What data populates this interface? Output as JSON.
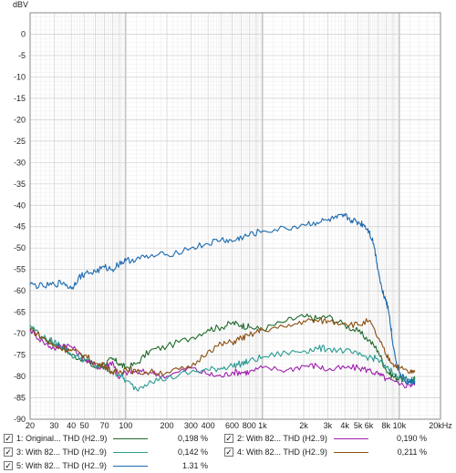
{
  "chart_data": {
    "type": "line",
    "ylabel": "dBV",
    "xlabel": "",
    "x_scale": "log",
    "xlim": [
      20,
      20000
    ],
    "ylim": [
      -90,
      5
    ],
    "y_ticks": [
      0,
      -5,
      -10,
      -15,
      -20,
      -25,
      -30,
      -35,
      -40,
      -45,
      -50,
      -55,
      -60,
      -65,
      -70,
      -75,
      -80,
      -85,
      -90
    ],
    "x_ticks": [
      {
        "value": 20,
        "label": "20"
      },
      {
        "value": 30,
        "label": "30"
      },
      {
        "value": 40,
        "label": "40"
      },
      {
        "value": 50,
        "label": "50"
      },
      {
        "value": 70,
        "label": "70"
      },
      {
        "value": 100,
        "label": "100"
      },
      {
        "value": 200,
        "label": "200"
      },
      {
        "value": 300,
        "label": "300"
      },
      {
        "value": 400,
        "label": "400"
      },
      {
        "value": 600,
        "label": "600"
      },
      {
        "value": 800,
        "label": "800"
      },
      {
        "value": 1000,
        "label": "1k"
      },
      {
        "value": 2000,
        "label": "2k"
      },
      {
        "value": 3000,
        "label": "3k"
      },
      {
        "value": 4000,
        "label": "4k"
      },
      {
        "value": 5000,
        "label": "5k"
      },
      {
        "value": 6000,
        "label": "6k"
      },
      {
        "value": 8000,
        "label": "8k"
      },
      {
        "value": 10000,
        "label": "10k"
      },
      {
        "value": 20000,
        "label": "20kHz"
      }
    ],
    "grid": true,
    "legend_placement": "bottom",
    "series": [
      {
        "name": "1: Original... THD (H2..9)",
        "color": "#1f6a2c",
        "value_label": "0,198 %",
        "checked": true,
        "points": [
          [
            20,
            -69
          ],
          [
            25,
            -71
          ],
          [
            30,
            -72.5
          ],
          [
            35,
            -73
          ],
          [
            40,
            -75
          ],
          [
            50,
            -76
          ],
          [
            60,
            -78
          ],
          [
            70,
            -77
          ],
          [
            80,
            -76
          ],
          [
            90,
            -77
          ],
          [
            100,
            -78
          ],
          [
            120,
            -77
          ],
          [
            150,
            -74
          ],
          [
            200,
            -73
          ],
          [
            300,
            -71
          ],
          [
            400,
            -69
          ],
          [
            500,
            -68.5
          ],
          [
            600,
            -67.5
          ],
          [
            700,
            -68
          ],
          [
            800,
            -68.5
          ],
          [
            1000,
            -69
          ],
          [
            1500,
            -67
          ],
          [
            2000,
            -66
          ],
          [
            2500,
            -66.5
          ],
          [
            3000,
            -66
          ],
          [
            4000,
            -68
          ],
          [
            5000,
            -69.5
          ],
          [
            6000,
            -71.5
          ],
          [
            7000,
            -74
          ],
          [
            8000,
            -78.5
          ],
          [
            9000,
            -80
          ],
          [
            10000,
            -80.5
          ],
          [
            12000,
            -81
          ],
          [
            13000,
            -80.5
          ]
        ]
      },
      {
        "name": "2: With 82... THD (H2..9)",
        "color": "#a020b0",
        "value_label": "0,190 %",
        "checked": true,
        "points": [
          [
            20,
            -69
          ],
          [
            25,
            -72
          ],
          [
            30,
            -73.5
          ],
          [
            35,
            -72.5
          ],
          [
            40,
            -73
          ],
          [
            50,
            -76
          ],
          [
            60,
            -77.5
          ],
          [
            70,
            -78
          ],
          [
            80,
            -76.5
          ],
          [
            90,
            -80.5
          ],
          [
            100,
            -79
          ],
          [
            120,
            -79
          ],
          [
            150,
            -79
          ],
          [
            200,
            -80
          ],
          [
            300,
            -78
          ],
          [
            400,
            -79.5
          ],
          [
            500,
            -80
          ],
          [
            600,
            -79
          ],
          [
            700,
            -79
          ],
          [
            800,
            -79
          ],
          [
            1000,
            -78
          ],
          [
            1500,
            -78.5
          ],
          [
            2000,
            -77.5
          ],
          [
            2500,
            -77.5
          ],
          [
            3000,
            -78.5
          ],
          [
            4000,
            -78
          ],
          [
            5000,
            -78
          ],
          [
            6000,
            -78.5
          ],
          [
            7000,
            -79.5
          ],
          [
            8000,
            -80.5
          ],
          [
            10000,
            -82
          ],
          [
            12000,
            -82
          ],
          [
            13000,
            -81.5
          ]
        ]
      },
      {
        "name": "3: With 82... THD (H2..9)",
        "color": "#2a9a94",
        "value_label": "0,142 %",
        "checked": true,
        "points": [
          [
            20,
            -68
          ],
          [
            25,
            -71
          ],
          [
            30,
            -72
          ],
          [
            35,
            -73
          ],
          [
            40,
            -75
          ],
          [
            50,
            -76
          ],
          [
            60,
            -77.5
          ],
          [
            70,
            -78
          ],
          [
            80,
            -79
          ],
          [
            90,
            -79.5
          ],
          [
            100,
            -81
          ],
          [
            120,
            -83
          ],
          [
            150,
            -81
          ],
          [
            200,
            -80.5
          ],
          [
            300,
            -79
          ],
          [
            400,
            -78.5
          ],
          [
            500,
            -78
          ],
          [
            600,
            -77.5
          ],
          [
            700,
            -77
          ],
          [
            800,
            -76.5
          ],
          [
            1000,
            -75.5
          ],
          [
            1500,
            -74.5
          ],
          [
            2000,
            -74
          ],
          [
            2500,
            -73.5
          ],
          [
            3000,
            -73.5
          ],
          [
            4000,
            -74
          ],
          [
            5000,
            -75
          ],
          [
            6000,
            -75.5
          ],
          [
            7000,
            -76
          ],
          [
            8000,
            -78
          ],
          [
            10000,
            -80
          ],
          [
            12000,
            -81
          ],
          [
            13000,
            -80.5
          ]
        ]
      },
      {
        "name": "4: With 82... THD (H2..9)",
        "color": "#8a4e12",
        "value_label": "0,211 %",
        "checked": true,
        "points": [
          [
            20,
            -69
          ],
          [
            25,
            -71
          ],
          [
            30,
            -73
          ],
          [
            35,
            -73.5
          ],
          [
            40,
            -74
          ],
          [
            50,
            -75
          ],
          [
            60,
            -77
          ],
          [
            70,
            -77.5
          ],
          [
            80,
            -79
          ],
          [
            90,
            -79
          ],
          [
            100,
            -78
          ],
          [
            120,
            -79
          ],
          [
            150,
            -79
          ],
          [
            200,
            -79
          ],
          [
            300,
            -78
          ],
          [
            400,
            -74
          ],
          [
            500,
            -72.5
          ],
          [
            600,
            -72
          ],
          [
            700,
            -71
          ],
          [
            800,
            -70.5
          ],
          [
            1000,
            -69
          ],
          [
            1500,
            -68.5
          ],
          [
            2000,
            -67
          ],
          [
            2500,
            -67
          ],
          [
            3000,
            -67
          ],
          [
            4000,
            -67.5
          ],
          [
            5000,
            -68
          ],
          [
            6000,
            -67
          ],
          [
            7000,
            -71
          ],
          [
            8000,
            -75
          ],
          [
            9000,
            -77
          ],
          [
            10000,
            -78
          ],
          [
            12000,
            -79
          ],
          [
            13000,
            -79
          ]
        ]
      },
      {
        "name": "5: With 82... THD (H2..9)",
        "color": "#1c6ab0",
        "value_label": "1.31 %",
        "checked": true,
        "points": [
          [
            20,
            -58.5
          ],
          [
            25,
            -59
          ],
          [
            30,
            -58.5
          ],
          [
            35,
            -58
          ],
          [
            40,
            -59.5
          ],
          [
            45,
            -57
          ],
          [
            50,
            -56
          ],
          [
            60,
            -55.5
          ],
          [
            70,
            -54.5
          ],
          [
            80,
            -55
          ],
          [
            90,
            -53.5
          ],
          [
            100,
            -53
          ],
          [
            120,
            -52.5
          ],
          [
            150,
            -52
          ],
          [
            200,
            -51.5
          ],
          [
            300,
            -50
          ],
          [
            400,
            -49
          ],
          [
            500,
            -48
          ],
          [
            600,
            -48.5
          ],
          [
            700,
            -47.5
          ],
          [
            800,
            -47
          ],
          [
            1000,
            -46
          ],
          [
            1500,
            -45.5
          ],
          [
            2000,
            -44.5
          ],
          [
            2500,
            -44
          ],
          [
            3000,
            -43.5
          ],
          [
            3500,
            -43
          ],
          [
            4000,
            -42.5
          ],
          [
            4500,
            -43.5
          ],
          [
            5000,
            -44
          ],
          [
            5500,
            -44.5
          ],
          [
            6000,
            -46
          ],
          [
            6500,
            -49
          ],
          [
            7000,
            -55
          ],
          [
            7500,
            -60
          ],
          [
            8000,
            -62
          ],
          [
            8500,
            -66
          ],
          [
            9000,
            -73
          ],
          [
            10000,
            -79
          ],
          [
            11000,
            -81
          ],
          [
            12000,
            -81.5
          ],
          [
            13000,
            -81
          ]
        ]
      }
    ]
  }
}
